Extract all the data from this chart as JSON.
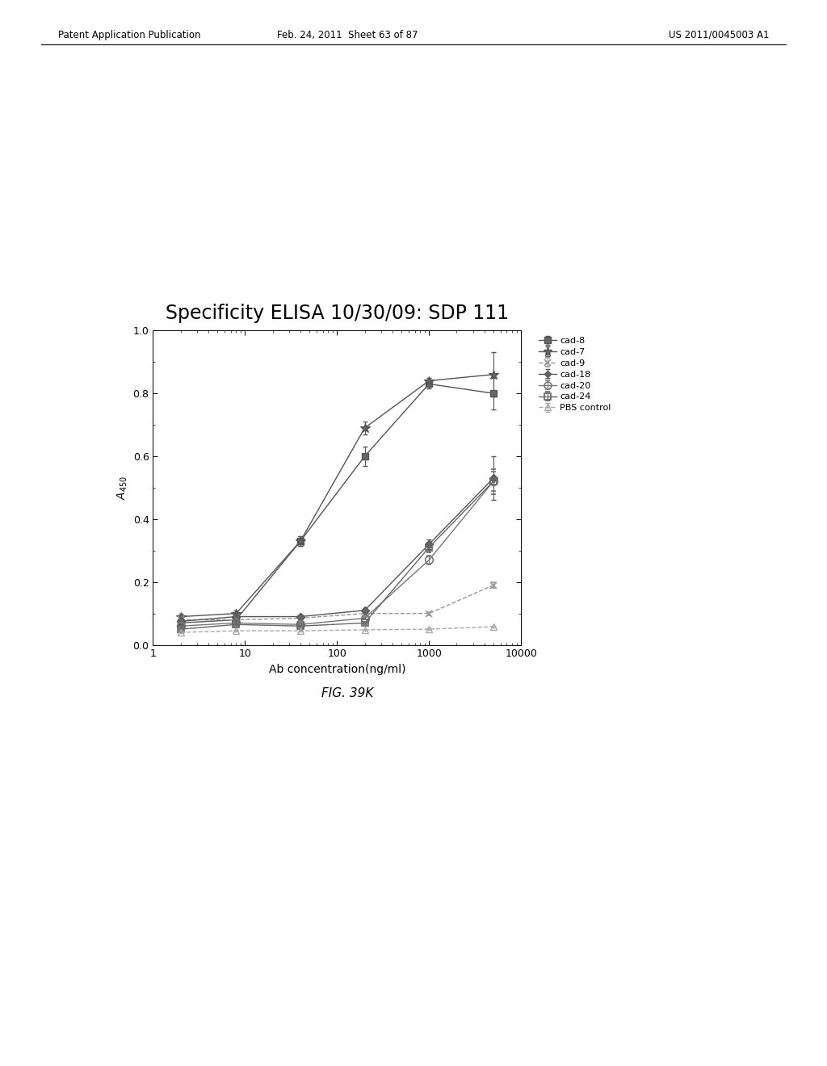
{
  "title": "Specificity ELISA 10/30/09: SDP 111",
  "xlabel": "Ab concentration(ng/ml)",
  "x_values": [
    2,
    8,
    40,
    200,
    1000,
    5000
  ],
  "series_order": [
    "cad-8",
    "cad-7",
    "cad-9",
    "cad-18",
    "cad-20",
    "cad-24",
    "PBS control"
  ],
  "series": {
    "cad-8": {
      "y": [
        0.07,
        0.08,
        0.33,
        0.6,
        0.83,
        0.8
      ],
      "yerr": [
        0.01,
        0.01,
        0.015,
        0.03,
        0.015,
        0.05
      ],
      "color": "#555555",
      "marker": "s",
      "linestyle": "-",
      "ms": 6,
      "mfc": "#666666",
      "mew": 1.0
    },
    "cad-7": {
      "y": [
        0.09,
        0.1,
        0.33,
        0.69,
        0.84,
        0.86
      ],
      "yerr": [
        0.01,
        0.01,
        0.015,
        0.02,
        0.01,
        0.07
      ],
      "color": "#555555",
      "marker": "*",
      "linestyle": "-",
      "ms": 9,
      "mfc": "#666666",
      "mew": 1.0
    },
    "cad-9": {
      "y": [
        0.08,
        0.08,
        0.085,
        0.1,
        0.1,
        0.19
      ],
      "yerr": [
        0.005,
        0.005,
        0.004,
        0.005,
        0.005,
        0.008
      ],
      "color": "#999999",
      "marker": "x",
      "linestyle": "--",
      "ms": 6,
      "mfc": "#999999",
      "mew": 1.2
    },
    "cad-18": {
      "y": [
        0.075,
        0.09,
        0.09,
        0.11,
        0.32,
        0.53
      ],
      "yerr": [
        0.005,
        0.005,
        0.005,
        0.008,
        0.015,
        0.07
      ],
      "color": "#555555",
      "marker": "D",
      "linestyle": "-",
      "ms": 5,
      "mfc": "#666666",
      "mew": 1.0
    },
    "cad-20": {
      "y": [
        0.06,
        0.07,
        0.065,
        0.085,
        0.27,
        0.52
      ],
      "yerr": [
        0.004,
        0.004,
        0.004,
        0.004,
        0.015,
        0.03
      ],
      "color": "#777777",
      "marker": "o",
      "linestyle": "-",
      "ms": 7,
      "mfc": "none",
      "mew": 1.2
    },
    "cad-24": {
      "y": [
        0.05,
        0.065,
        0.06,
        0.07,
        0.31,
        0.52
      ],
      "yerr": [
        0.004,
        0.004,
        0.004,
        0.004,
        0.015,
        0.04
      ],
      "color": "#666666",
      "marker": "s",
      "linestyle": "-",
      "ms": 6,
      "mfc": "none",
      "mew": 1.2
    },
    "PBS control": {
      "y": [
        0.04,
        0.045,
        0.045,
        0.048,
        0.05,
        0.058
      ],
      "yerr": [
        0.003,
        0.003,
        0.003,
        0.003,
        0.003,
        0.003
      ],
      "color": "#aaaaaa",
      "marker": "^",
      "linestyle": "--",
      "ms": 6,
      "mfc": "none",
      "mew": 1.0
    }
  },
  "xlim": [
    1,
    10000
  ],
  "ylim": [
    0.0,
    1.0
  ],
  "yticks": [
    0.0,
    0.2,
    0.4,
    0.6,
    0.8,
    1.0
  ],
  "background_color": "#ffffff",
  "fig_caption": "FIG. 39K",
  "header_left": "Patent Application Publication",
  "header_center": "Feb. 24, 2011  Sheet 63 of 87",
  "header_right": "US 2011/0045003 A1"
}
